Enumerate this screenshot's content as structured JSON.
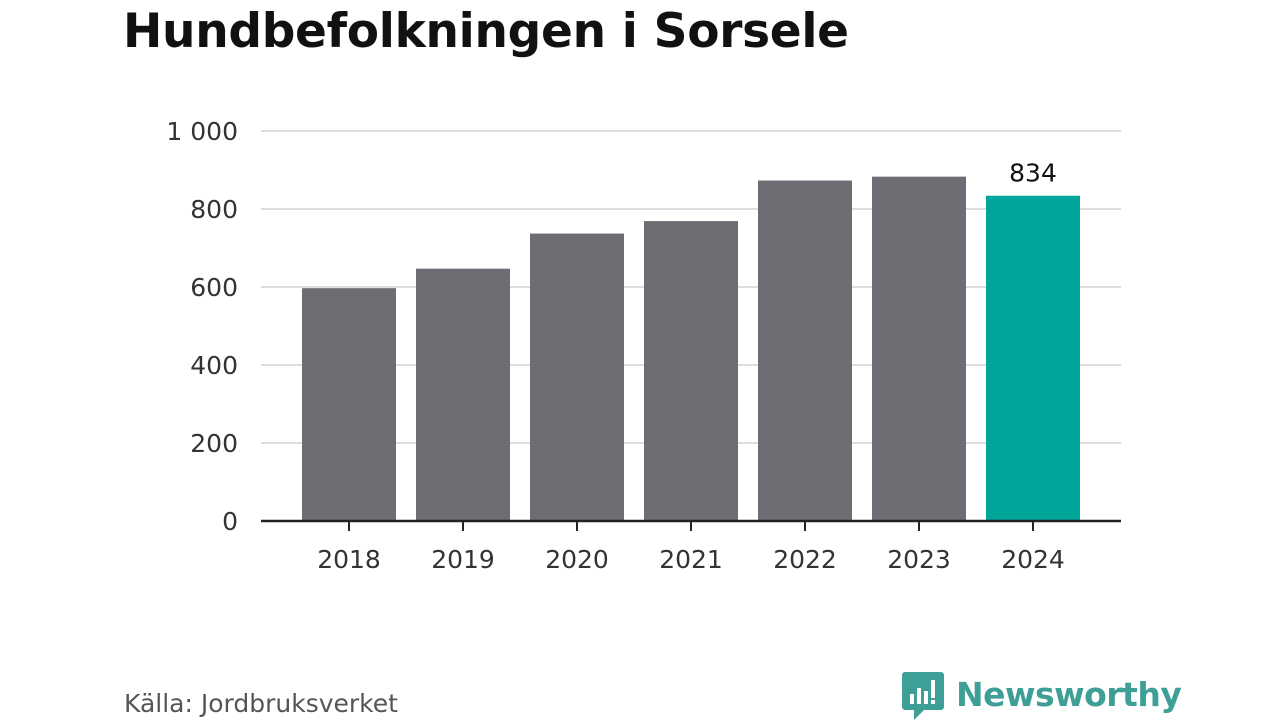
{
  "header": {
    "title": "Hundbefolkningen i Sorsele"
  },
  "footer": {
    "source": "Källa: Jordbruksverket",
    "brand": "Newsworthy"
  },
  "colors": {
    "bar": "#6e6d73",
    "highlight": "#00a59b",
    "grid": "#dddddd",
    "axis": "#222222",
    "brand": "#3e9f97"
  },
  "chart_data": {
    "type": "bar",
    "title": "Hundbefolkningen i Sorsele",
    "categories": [
      "2018",
      "2019",
      "2020",
      "2021",
      "2022",
      "2023",
      "2024"
    ],
    "values": [
      597,
      647,
      737,
      769,
      873,
      883,
      834
    ],
    "ylim": [
      0,
      1000
    ],
    "yticks": [
      0,
      200,
      400,
      600,
      800,
      1000
    ],
    "ytick_labels": [
      "0",
      "200",
      "400",
      "600",
      "800",
      "1 000"
    ],
    "highlight_index": 6,
    "data_labels": [
      {
        "index": 6,
        "text": "834"
      }
    ],
    "grid": true,
    "xlabel": "",
    "ylabel": ""
  }
}
